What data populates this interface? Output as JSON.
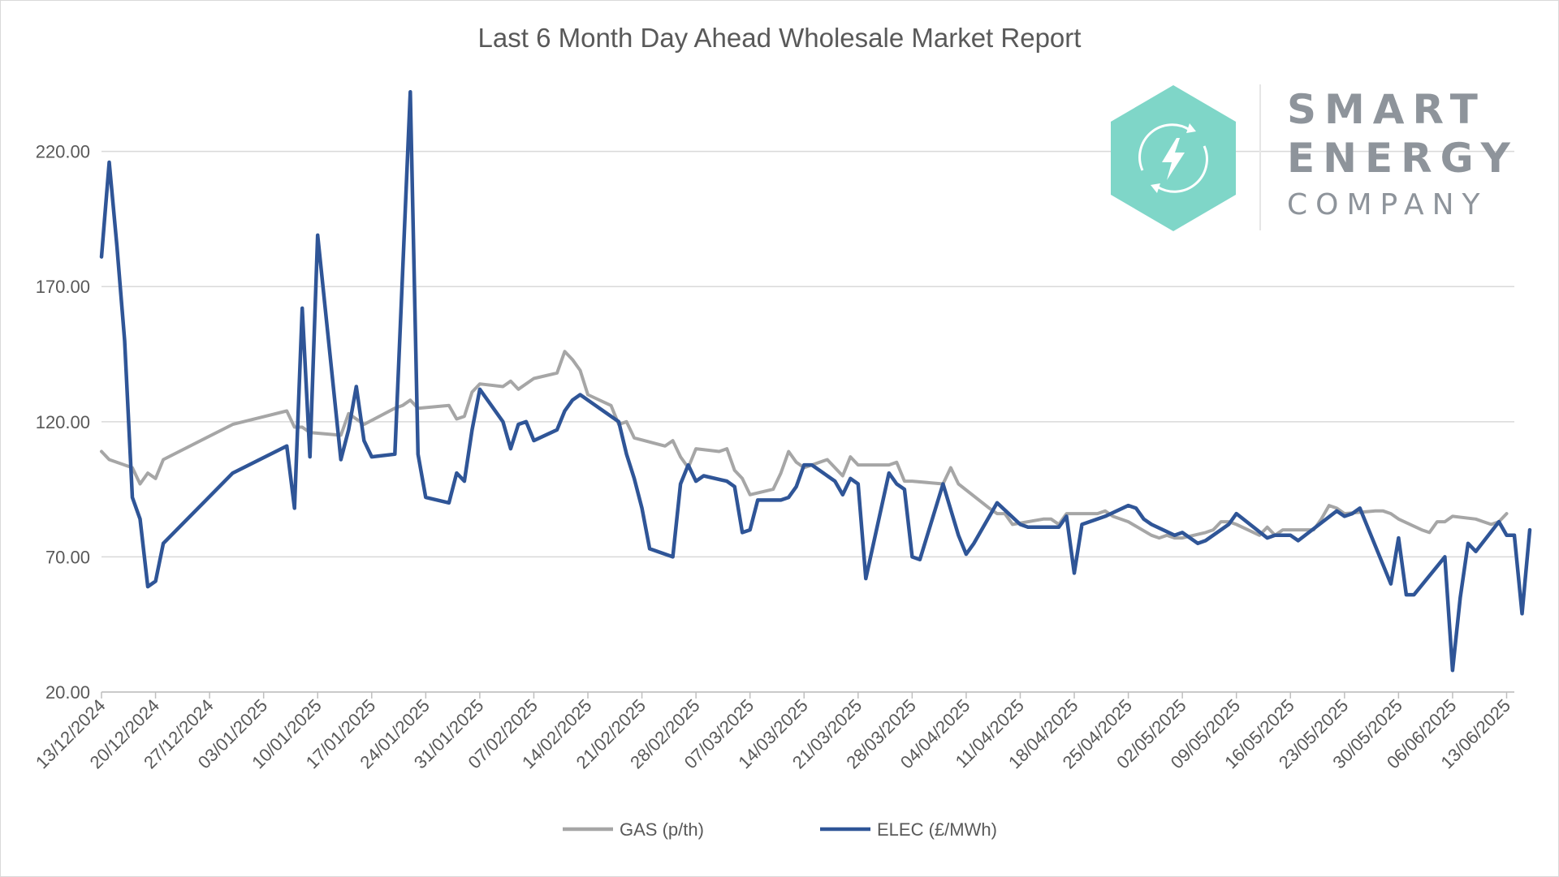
{
  "chart_data": {
    "type": "line",
    "title": "Last 6 Month Day Ahead Wholesale Market Report",
    "xlabel": "",
    "ylabel": "",
    "x_range": [
      "2024-12-13",
      "2025-06-14"
    ],
    "ylim": [
      20,
      240
    ],
    "y_ticks": [
      "20.00",
      "70.00",
      "120.00",
      "170.00",
      "220.00"
    ],
    "x_ticks": [
      "13/12/2024",
      "20/12/2024",
      "27/12/2024",
      "03/01/2025",
      "10/01/2025",
      "17/01/2025",
      "24/01/2025",
      "31/01/2025",
      "07/02/2025",
      "14/02/2025",
      "21/02/2025",
      "28/02/2025",
      "07/03/2025",
      "14/03/2025",
      "21/03/2025",
      "28/03/2025",
      "04/04/2025",
      "11/04/2025",
      "18/04/2025",
      "25/04/2025",
      "02/05/2025",
      "09/05/2025",
      "16/05/2025",
      "23/05/2025",
      "30/05/2025",
      "06/06/2025",
      "13/06/2025"
    ],
    "grid": "horizontal",
    "legend_position": "bottom",
    "series": [
      {
        "name": "GAS (p/th)",
        "color": "#a6a6a6",
        "points": [
          [
            "2024-12-13",
            109
          ],
          [
            "2024-12-14",
            106
          ],
          [
            "2024-12-17",
            103
          ],
          [
            "2024-12-18",
            97
          ],
          [
            "2024-12-19",
            101
          ],
          [
            "2024-12-20",
            99
          ],
          [
            "2024-12-21",
            106
          ],
          [
            "2024-12-30",
            119
          ],
          [
            "2025-01-06",
            124
          ],
          [
            "2025-01-07",
            118
          ],
          [
            "2025-01-08",
            118
          ],
          [
            "2025-01-09",
            116
          ],
          [
            "2025-01-13",
            115
          ],
          [
            "2025-01-14",
            123
          ],
          [
            "2025-01-16",
            119
          ],
          [
            "2025-01-20",
            125
          ],
          [
            "2025-01-21",
            126
          ],
          [
            "2025-01-22",
            128
          ],
          [
            "2025-01-23",
            125
          ],
          [
            "2025-01-27",
            126
          ],
          [
            "2025-01-28",
            121
          ],
          [
            "2025-01-29",
            122
          ],
          [
            "2025-01-30",
            131
          ],
          [
            "2025-01-31",
            134
          ],
          [
            "2025-02-03",
            133
          ],
          [
            "2025-02-04",
            135
          ],
          [
            "2025-02-05",
            132
          ],
          [
            "2025-02-07",
            136
          ],
          [
            "2025-02-10",
            138
          ],
          [
            "2025-02-11",
            146
          ],
          [
            "2025-02-12",
            143
          ],
          [
            "2025-02-13",
            139
          ],
          [
            "2025-02-14",
            130
          ],
          [
            "2025-02-17",
            126
          ],
          [
            "2025-02-18",
            119
          ],
          [
            "2025-02-19",
            120
          ],
          [
            "2025-02-20",
            114
          ],
          [
            "2025-02-24",
            111
          ],
          [
            "2025-02-25",
            113
          ],
          [
            "2025-02-26",
            107
          ],
          [
            "2025-02-27",
            103
          ],
          [
            "2025-02-28",
            110
          ],
          [
            "2025-03-03",
            109
          ],
          [
            "2025-03-04",
            110
          ],
          [
            "2025-03-05",
            102
          ],
          [
            "2025-03-06",
            99
          ],
          [
            "2025-03-07",
            93
          ],
          [
            "2025-03-10",
            95
          ],
          [
            "2025-03-11",
            101
          ],
          [
            "2025-03-12",
            109
          ],
          [
            "2025-03-13",
            105
          ],
          [
            "2025-03-14",
            103
          ],
          [
            "2025-03-17",
            106
          ],
          [
            "2025-03-18",
            103
          ],
          [
            "2025-03-19",
            100
          ],
          [
            "2025-03-20",
            107
          ],
          [
            "2025-03-21",
            104
          ],
          [
            "2025-03-25",
            104
          ],
          [
            "2025-03-26",
            105
          ],
          [
            "2025-03-27",
            98
          ],
          [
            "2025-03-28",
            98
          ],
          [
            "2025-04-01",
            97
          ],
          [
            "2025-04-02",
            103
          ],
          [
            "2025-04-03",
            97
          ],
          [
            "2025-04-07",
            88
          ],
          [
            "2025-04-08",
            86
          ],
          [
            "2025-04-09",
            86
          ],
          [
            "2025-04-10",
            82
          ],
          [
            "2025-04-14",
            84
          ],
          [
            "2025-04-15",
            84
          ],
          [
            "2025-04-16",
            82
          ],
          [
            "2025-04-17",
            86
          ],
          [
            "2025-04-21",
            86
          ],
          [
            "2025-04-22",
            87
          ],
          [
            "2025-04-23",
            85
          ],
          [
            "2025-04-24",
            84
          ],
          [
            "2025-04-25",
            83
          ],
          [
            "2025-04-28",
            78
          ],
          [
            "2025-04-29",
            77
          ],
          [
            "2025-04-30",
            78
          ],
          [
            "2025-05-01",
            77
          ],
          [
            "2025-05-02",
            77
          ],
          [
            "2025-05-05",
            79
          ],
          [
            "2025-05-06",
            80
          ],
          [
            "2025-05-07",
            83
          ],
          [
            "2025-05-08",
            83
          ],
          [
            "2025-05-09",
            82
          ],
          [
            "2025-05-12",
            78
          ],
          [
            "2025-05-13",
            81
          ],
          [
            "2025-05-14",
            78
          ],
          [
            "2025-05-15",
            80
          ],
          [
            "2025-05-16",
            80
          ],
          [
            "2025-05-19",
            80
          ],
          [
            "2025-05-20",
            84
          ],
          [
            "2025-05-21",
            89
          ],
          [
            "2025-05-22",
            88
          ],
          [
            "2025-05-23",
            86
          ],
          [
            "2025-05-27",
            87
          ],
          [
            "2025-05-28",
            87
          ],
          [
            "2025-05-29",
            86
          ],
          [
            "2025-05-30",
            84
          ],
          [
            "2025-06-02",
            80
          ],
          [
            "2025-06-03",
            79
          ],
          [
            "2025-06-04",
            83
          ],
          [
            "2025-06-05",
            83
          ],
          [
            "2025-06-06",
            85
          ],
          [
            "2025-06-09",
            84
          ],
          [
            "2025-06-10",
            83
          ],
          [
            "2025-06-11",
            82
          ],
          [
            "2025-06-12",
            83
          ],
          [
            "2025-06-13",
            86
          ]
        ]
      },
      {
        "name": "ELEC (£/MWh)",
        "color": "#2f5597",
        "points": [
          [
            "2024-12-13",
            181
          ],
          [
            "2024-12-14",
            216
          ],
          [
            "2024-12-15",
            185
          ],
          [
            "2024-12-16",
            150
          ],
          [
            "2024-12-17",
            92
          ],
          [
            "2024-12-18",
            84
          ],
          [
            "2024-12-19",
            59
          ],
          [
            "2024-12-20",
            61
          ],
          [
            "2024-12-21",
            75
          ],
          [
            "2024-12-30",
            101
          ],
          [
            "2025-01-06",
            111
          ],
          [
            "2025-01-07",
            88
          ],
          [
            "2025-01-08",
            162
          ],
          [
            "2025-01-09",
            107
          ],
          [
            "2025-01-10",
            189
          ],
          [
            "2025-01-13",
            106
          ],
          [
            "2025-01-14",
            117
          ],
          [
            "2025-01-15",
            133
          ],
          [
            "2025-01-16",
            113
          ],
          [
            "2025-01-17",
            107
          ],
          [
            "2025-01-20",
            108
          ],
          [
            "2025-01-21",
            175
          ],
          [
            "2025-01-22",
            242
          ],
          [
            "2025-01-23",
            108
          ],
          [
            "2025-01-24",
            92
          ],
          [
            "2025-01-27",
            90
          ],
          [
            "2025-01-28",
            101
          ],
          [
            "2025-01-29",
            98
          ],
          [
            "2025-01-30",
            117
          ],
          [
            "2025-01-31",
            132
          ],
          [
            "2025-02-03",
            120
          ],
          [
            "2025-02-04",
            110
          ],
          [
            "2025-02-05",
            119
          ],
          [
            "2025-02-06",
            120
          ],
          [
            "2025-02-07",
            113
          ],
          [
            "2025-02-10",
            117
          ],
          [
            "2025-02-11",
            124
          ],
          [
            "2025-02-12",
            128
          ],
          [
            "2025-02-13",
            130
          ],
          [
            "2025-02-14",
            128
          ],
          [
            "2025-02-18",
            120
          ],
          [
            "2025-02-19",
            108
          ],
          [
            "2025-02-20",
            99
          ],
          [
            "2025-02-21",
            88
          ],
          [
            "2025-02-22",
            73
          ],
          [
            "2025-02-25",
            70
          ],
          [
            "2025-02-26",
            97
          ],
          [
            "2025-02-27",
            104
          ],
          [
            "2025-02-28",
            98
          ],
          [
            "2025-03-01",
            100
          ],
          [
            "2025-03-04",
            98
          ],
          [
            "2025-03-05",
            96
          ],
          [
            "2025-03-06",
            79
          ],
          [
            "2025-03-07",
            80
          ],
          [
            "2025-03-08",
            91
          ],
          [
            "2025-03-11",
            91
          ],
          [
            "2025-03-12",
            92
          ],
          [
            "2025-03-13",
            96
          ],
          [
            "2025-03-14",
            104
          ],
          [
            "2025-03-15",
            104
          ],
          [
            "2025-03-18",
            98
          ],
          [
            "2025-03-19",
            93
          ],
          [
            "2025-03-20",
            99
          ],
          [
            "2025-03-21",
            97
          ],
          [
            "2025-03-22",
            62
          ],
          [
            "2025-03-25",
            101
          ],
          [
            "2025-03-26",
            97
          ],
          [
            "2025-03-27",
            95
          ],
          [
            "2025-03-28",
            70
          ],
          [
            "2025-03-29",
            69
          ],
          [
            "2025-04-01",
            97
          ],
          [
            "2025-04-03",
            78
          ],
          [
            "2025-04-04",
            71
          ],
          [
            "2025-04-05",
            75
          ],
          [
            "2025-04-08",
            90
          ],
          [
            "2025-04-11",
            82
          ],
          [
            "2025-04-12",
            81
          ],
          [
            "2025-04-15",
            81
          ],
          [
            "2025-04-16",
            81
          ],
          [
            "2025-04-17",
            85
          ],
          [
            "2025-04-18",
            64
          ],
          [
            "2025-04-19",
            82
          ],
          [
            "2025-04-22",
            85
          ],
          [
            "2025-04-25",
            89
          ],
          [
            "2025-04-26",
            88
          ],
          [
            "2025-04-27",
            84
          ],
          [
            "2025-04-28",
            82
          ],
          [
            "2025-05-01",
            78
          ],
          [
            "2025-05-02",
            79
          ],
          [
            "2025-05-03",
            77
          ],
          [
            "2025-05-04",
            75
          ],
          [
            "2025-05-05",
            76
          ],
          [
            "2025-05-08",
            82
          ],
          [
            "2025-05-09",
            86
          ],
          [
            "2025-05-13",
            77
          ],
          [
            "2025-05-14",
            78
          ],
          [
            "2025-05-16",
            78
          ],
          [
            "2025-05-17",
            76
          ],
          [
            "2025-05-22",
            87
          ],
          [
            "2025-05-23",
            85
          ],
          [
            "2025-05-24",
            86
          ],
          [
            "2025-05-25",
            88
          ],
          [
            "2025-05-29",
            60
          ],
          [
            "2025-05-30",
            77
          ],
          [
            "2025-05-31",
            56
          ],
          [
            "2025-06-01",
            56
          ],
          [
            "2025-06-05",
            70
          ],
          [
            "2025-06-06",
            28
          ],
          [
            "2025-06-07",
            55
          ],
          [
            "2025-06-08",
            75
          ],
          [
            "2025-06-09",
            72
          ],
          [
            "2025-06-12",
            83
          ],
          [
            "2025-06-13",
            78
          ],
          [
            "2025-06-14",
            78
          ],
          [
            "2025-06-15",
            49
          ],
          [
            "2025-06-16",
            80
          ]
        ]
      }
    ]
  },
  "logo": {
    "line1": "SMART",
    "line2": "ENERGY",
    "line3": "COMPANY",
    "hex_color": "#7fd6c8",
    "icon": "lightning-bolt-icon"
  }
}
